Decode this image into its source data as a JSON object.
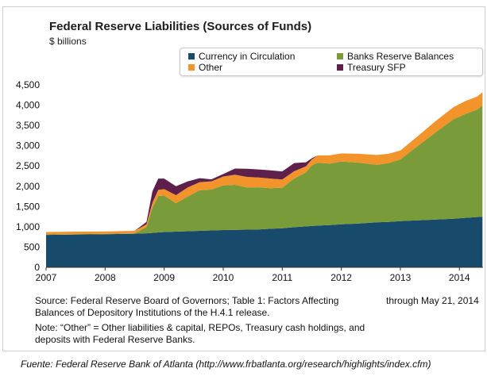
{
  "chart_data": {
    "type": "area",
    "stacked": true,
    "title": "Federal Reserve Liabilities (Sources of Funds)",
    "ylabel": "$ billions",
    "xlabel": "",
    "ylim": [
      0,
      4500
    ],
    "xlim": [
      2007.0,
      2014.4
    ],
    "yticks": [
      0,
      500,
      1000,
      1500,
      2000,
      2500,
      3000,
      3500,
      4000,
      4500
    ],
    "ytick_labels": [
      "0",
      "500",
      "1,000",
      "1,500",
      "2,000",
      "2,500",
      "3,000",
      "3,500",
      "4,000",
      "4,500"
    ],
    "xticks": [
      2007,
      2008,
      2009,
      2010,
      2011,
      2012,
      2013,
      2014
    ],
    "xtick_labels": [
      "2007",
      "2008",
      "2009",
      "2010",
      "2011",
      "2012",
      "2013",
      "2014"
    ],
    "x": [
      2007.0,
      2007.5,
      2008.0,
      2008.5,
      2008.7,
      2008.8,
      2008.9,
      2009.0,
      2009.2,
      2009.4,
      2009.6,
      2009.8,
      2010.0,
      2010.2,
      2010.4,
      2010.6,
      2010.8,
      2011.0,
      2011.2,
      2011.4,
      2011.5,
      2011.6,
      2011.8,
      2012.0,
      2012.3,
      2012.6,
      2012.8,
      2013.0,
      2013.3,
      2013.6,
      2013.9,
      2014.1,
      2014.3,
      2014.39
    ],
    "series": [
      {
        "name": "Currency in Circulation",
        "color": "#184a6b",
        "values": [
          800,
          810,
          815,
          830,
          840,
          850,
          860,
          870,
          880,
          890,
          900,
          910,
          920,
          925,
          930,
          935,
          950,
          965,
          990,
          1010,
          1020,
          1030,
          1040,
          1060,
          1080,
          1110,
          1120,
          1140,
          1160,
          1180,
          1200,
          1220,
          1240,
          1250
        ]
      },
      {
        "name": "Banks Reserve Balances",
        "color": "#7a9b3a",
        "values": [
          10,
          10,
          10,
          10,
          150,
          620,
          900,
          900,
          700,
          860,
          1000,
          1010,
          1100,
          1110,
          1040,
          1040,
          1000,
          1000,
          1200,
          1330,
          1500,
          1550,
          1520,
          1550,
          1500,
          1420,
          1450,
          1520,
          1840,
          2150,
          2450,
          2560,
          2650,
          2750
        ]
      },
      {
        "name": "Other",
        "color": "#f2932b",
        "values": [
          60,
          60,
          60,
          60,
          70,
          120,
          150,
          160,
          200,
          220,
          200,
          200,
          220,
          250,
          260,
          240,
          240,
          200,
          180,
          150,
          140,
          180,
          200,
          200,
          220,
          240,
          230,
          220,
          240,
          280,
          300,
          320,
          320,
          320
        ]
      },
      {
        "name": "Treasury SFP",
        "color": "#5e1f4a",
        "values": [
          0,
          0,
          0,
          0,
          60,
          280,
          280,
          260,
          220,
          150,
          100,
          50,
          60,
          150,
          200,
          200,
          200,
          200,
          200,
          100,
          30,
          0,
          0,
          0,
          0,
          0,
          0,
          0,
          0,
          0,
          0,
          0,
          0,
          0
        ]
      }
    ],
    "legend_position": "top-right"
  },
  "legend": {
    "items": [
      {
        "label": "Currency in Circulation",
        "color": "#184a6b"
      },
      {
        "label": "Banks Reserve Balances",
        "color": "#7a9b3a"
      },
      {
        "label": "Other",
        "color": "#f2932b"
      },
      {
        "label": "Treasury SFP",
        "color": "#5e1f4a"
      }
    ]
  },
  "header": {
    "title": "Federal Reserve Liabilities (Sources of Funds)",
    "unit": "$ billions"
  },
  "notes": {
    "source": "Source: Federal Reserve Board of Governors; Table 1: Factors Affecting Balances of Depository Institutions of the H.4.1 release.",
    "through": "through May 21, 2014",
    "note": "Note: “Other” = Other liabilities & capital, REPOs, Treasury cash holdings, and deposits with Federal Reserve Banks.",
    "fuente": "Fuente: Federal Reserve Bank of Atlanta (http://www.frbatlanta.org/research/highlights/index.cfm)"
  }
}
